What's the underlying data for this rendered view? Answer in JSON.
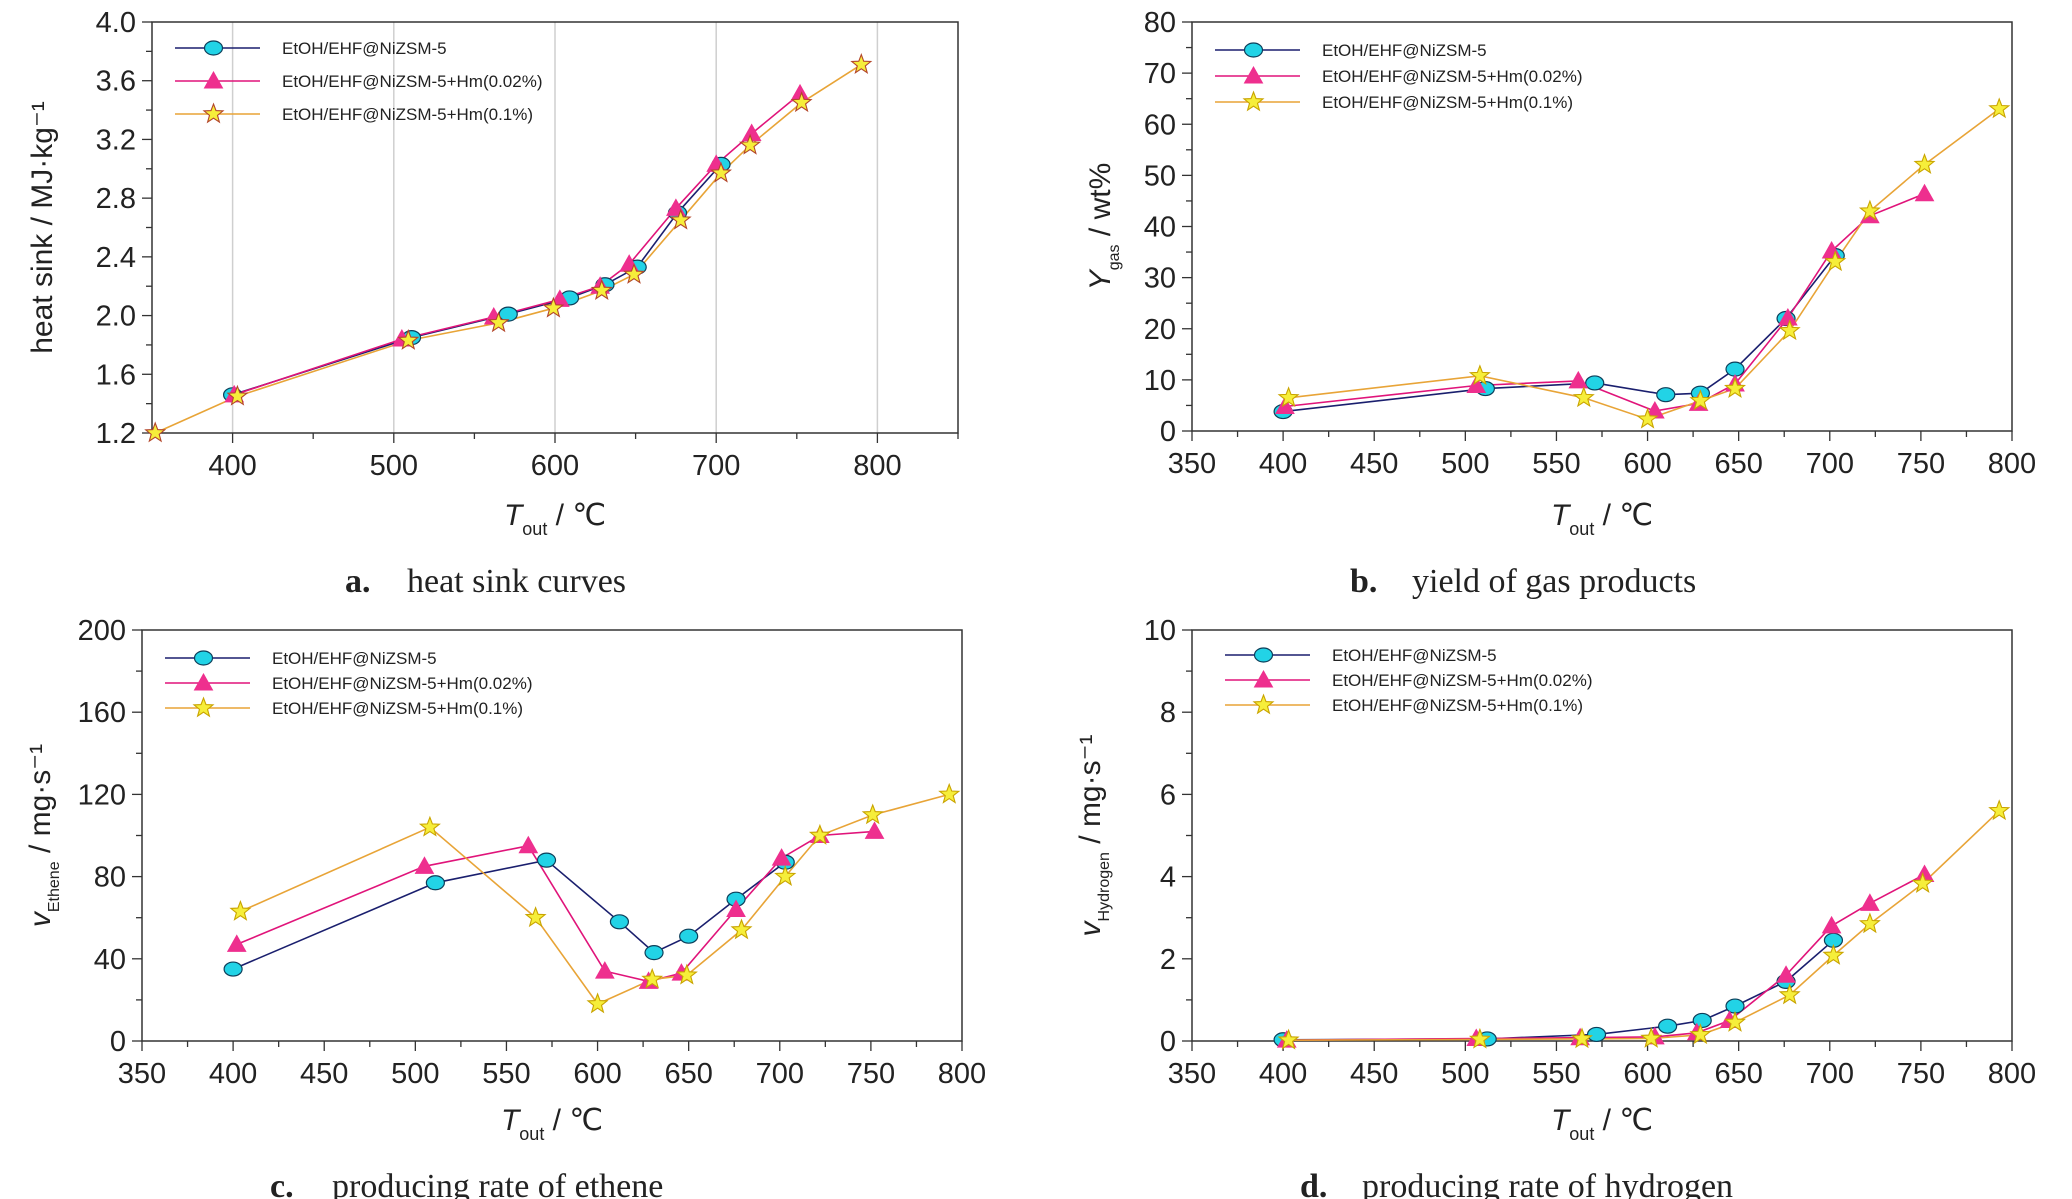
{
  "colors": {
    "EtOH/EHF@NiZSM-5": "#1a1f6e",
    "EtOH/EHF@NiZSM-5+Hm(0.02%)": "#e0147a",
    "EtOH/EHF@NiZSM-5+Hm(0.1%)": "#e8a437",
    "cyan_marker": "#22d3e6",
    "pink_marker": "#ee2f8e",
    "yellow_marker": "#f6ee3a"
  },
  "captions": [
    {
      "letter": "a.",
      "text": "heat sink curves"
    },
    {
      "letter": "b.",
      "text": "yield of gas products"
    },
    {
      "letter": "c.",
      "text": "producing rate of ethene"
    },
    {
      "letter": "d.",
      "text": "producing rate of hydrogen"
    }
  ],
  "chart_data": [
    {
      "type": "line",
      "title": "",
      "xlabel": "T_out / ℃",
      "ylabel": "heat sink / MJ·kg⁻¹",
      "xlim": [
        350,
        850
      ],
      "ylim": [
        1.2,
        4.0
      ],
      "xticks": [
        400,
        500,
        600,
        700,
        800
      ],
      "yticks": [
        "1.2",
        "1.6",
        "2.0",
        "2.4",
        "2.8",
        "3.2",
        "3.6",
        "4.0"
      ],
      "grid": "vertical",
      "legend": "top-left",
      "series": [
        {
          "name": "EtOH/EHF@NiZSM-5",
          "marker": "circle",
          "x": [
            400,
            511,
            571,
            609,
            631,
            651,
            676,
            703
          ],
          "y": [
            1.46,
            1.85,
            2.01,
            2.12,
            2.21,
            2.33,
            2.7,
            3.03
          ]
        },
        {
          "name": "EtOH/EHF@NiZSM-5+Hm(0.02%)",
          "marker": "triangle",
          "x": [
            401,
            505,
            562,
            603,
            628,
            646,
            675,
            700,
            722,
            752
          ],
          "y": [
            1.46,
            1.84,
            1.99,
            2.11,
            2.2,
            2.35,
            2.73,
            3.03,
            3.24,
            3.51
          ]
        },
        {
          "name": "EtOH/EHF@NiZSM-5+Hm(0.1%)",
          "marker": "star",
          "x": [
            352,
            403,
            509,
            565,
            599,
            629,
            649,
            678,
            703,
            721,
            753,
            790
          ],
          "y": [
            1.2,
            1.45,
            1.83,
            1.95,
            2.05,
            2.17,
            2.28,
            2.65,
            2.97,
            3.16,
            3.45,
            3.71
          ]
        }
      ]
    },
    {
      "type": "line",
      "title": "",
      "xlabel": "T_out / ℃",
      "ylabel": "Y_gas / wt%",
      "xlim": [
        350,
        800
      ],
      "ylim": [
        0,
        80
      ],
      "xticks": [
        350,
        400,
        450,
        500,
        550,
        600,
        650,
        700,
        750,
        800
      ],
      "yticks": [
        "0",
        "10",
        "20",
        "30",
        "40",
        "50",
        "60",
        "70",
        "80"
      ],
      "grid": "none",
      "legend": "top-left",
      "series": [
        {
          "name": "EtOH/EHF@NiZSM-5",
          "marker": "circle",
          "x": [
            400,
            511,
            571,
            610,
            629,
            648,
            676,
            703
          ],
          "y": [
            3.8,
            8.3,
            9.4,
            7.1,
            7.4,
            12.1,
            22.0,
            34.3
          ]
        },
        {
          "name": "EtOH/EHF@NiZSM-5+Hm(0.02%)",
          "marker": "triangle",
          "x": [
            401,
            506,
            562,
            604,
            628,
            648,
            677,
            701,
            722,
            752
          ],
          "y": [
            4.8,
            8.9,
            9.8,
            3.9,
            5.4,
            9.2,
            22.1,
            35.2,
            42.1,
            46.4
          ]
        },
        {
          "name": "EtOH/EHF@NiZSM-5+Hm(0.1%)",
          "marker": "star",
          "x": [
            403,
            508,
            565,
            600,
            629,
            648,
            678,
            703,
            722,
            752,
            793
          ],
          "y": [
            6.5,
            10.8,
            6.5,
            2.3,
            5.9,
            8.3,
            19.6,
            33.1,
            43.0,
            52.1,
            63.0
          ]
        }
      ]
    },
    {
      "type": "line",
      "title": "",
      "xlabel": "T_out / ℃",
      "ylabel": "v_Ethene / mg·s⁻¹",
      "xlim": [
        350,
        800
      ],
      "ylim": [
        0,
        200
      ],
      "xticks": [
        350,
        400,
        450,
        500,
        550,
        600,
        650,
        700,
        750,
        800
      ],
      "yticks": [
        "0",
        "40",
        "80",
        "120",
        "160",
        "200"
      ],
      "grid": "none",
      "legend": "top-left",
      "series": [
        {
          "name": "EtOH/EHF@NiZSM-5",
          "marker": "circle",
          "x": [
            400,
            511,
            572,
            612,
            631,
            650,
            676,
            703
          ],
          "y": [
            35,
            77,
            88,
            58,
            43,
            51,
            69,
            87
          ]
        },
        {
          "name": "EtOH/EHF@NiZSM-5+Hm(0.02%)",
          "marker": "triangle",
          "x": [
            402,
            505,
            562,
            604,
            628,
            646,
            676,
            701,
            722,
            752
          ],
          "y": [
            47,
            85,
            95,
            34,
            29,
            33,
            64,
            89,
            100,
            102
          ]
        },
        {
          "name": "EtOH/EHF@NiZSM-5+Hm(0.1%)",
          "marker": "star",
          "x": [
            404,
            508,
            566,
            600,
            630,
            649,
            679,
            703,
            722,
            751,
            793
          ],
          "y": [
            63,
            104,
            60,
            18,
            30,
            32,
            54,
            80,
            100,
            110,
            120
          ]
        }
      ]
    },
    {
      "type": "line",
      "title": "",
      "xlabel": "T_out / ℃",
      "ylabel": "v_Hydrogen / mg·s⁻¹",
      "xlim": [
        350,
        800
      ],
      "ylim": [
        0,
        10
      ],
      "xticks": [
        350,
        400,
        450,
        500,
        550,
        600,
        650,
        700,
        750,
        800
      ],
      "yticks": [
        "0",
        "2",
        "4",
        "6",
        "8",
        "10"
      ],
      "grid": "none",
      "legend": "top-left",
      "series": [
        {
          "name": "EtOH/EHF@NiZSM-5",
          "marker": "circle",
          "x": [
            400,
            512,
            572,
            611,
            630,
            648,
            676,
            702
          ],
          "y": [
            0.03,
            0.05,
            0.16,
            0.36,
            0.5,
            0.85,
            1.45,
            2.45
          ]
        },
        {
          "name": "EtOH/EHF@NiZSM-5+Hm(0.02%)",
          "marker": "triangle",
          "x": [
            402,
            506,
            563,
            604,
            627,
            645,
            676,
            701,
            722,
            752
          ],
          "y": [
            0.02,
            0.06,
            0.08,
            0.1,
            0.2,
            0.5,
            1.6,
            2.8,
            3.35,
            4.05
          ]
        },
        {
          "name": "EtOH/EHF@NiZSM-5+Hm(0.1%)",
          "marker": "star",
          "x": [
            403,
            508,
            564,
            602,
            629,
            648,
            678,
            702,
            722,
            751,
            793
          ],
          "y": [
            0.02,
            0.04,
            0.05,
            0.06,
            0.15,
            0.45,
            1.12,
            2.08,
            2.85,
            3.83,
            5.6
          ]
        }
      ]
    }
  ]
}
